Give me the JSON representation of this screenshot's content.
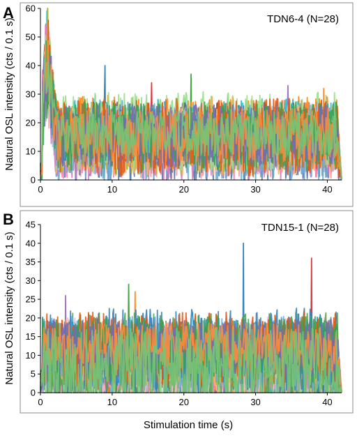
{
  "figure": {
    "ylabel": "Natural OSL intensity (cts / 0.1 s)",
    "xlabel": "Stimulation time (s)"
  },
  "palette": [
    "#1f77b4",
    "#d62728",
    "#2ca02c",
    "#9467bd",
    "#ff7f0e",
    "#17becf",
    "#8c564b",
    "#aec7e8",
    "#ffbb78",
    "#98df8a",
    "#ff9896",
    "#c5b0d5",
    "#f7b6d2",
    "#4e79a7",
    "#e377c2",
    "#bcbd22",
    "#f28e2b",
    "#59a14f",
    "#6baed6",
    "#fdae6b",
    "#a1d99b",
    "#9e9ac8",
    "#3182bd",
    "#e6550d",
    "#31a354",
    "#756bb1",
    "#fd8d3c",
    "#74c476"
  ],
  "chart_data": [
    {
      "panel": "A",
      "type": "line",
      "sample": "TDN6-4 (N=28)",
      "n_series": 28,
      "xlabel": "",
      "ylabel": "Natural OSL intensity (cts / 0.1 s)",
      "xlim": [
        0,
        42
      ],
      "ylim": [
        0,
        60
      ],
      "xticks": [
        0,
        10,
        20,
        30,
        40
      ],
      "yticks": [
        0,
        10,
        20,
        30,
        40,
        50,
        60
      ],
      "grid": false,
      "summary": {
        "x_start": 0,
        "x_end": 42,
        "sampling_interval_s": 0.1,
        "initial_peak_time_s": 1.0,
        "initial_peak_intensity": 52,
        "plateau_typical_range": [
          5,
          30
        ],
        "plateau_mean_approx": 15,
        "notable_spikes": [
          {
            "x": 9.0,
            "y": 40
          },
          {
            "x": 15.5,
            "y": 34
          },
          {
            "x": 21.0,
            "y": 37
          },
          {
            "x": 34.5,
            "y": 33
          },
          {
            "x": 39.5,
            "y": 32
          }
        ]
      }
    },
    {
      "panel": "B",
      "type": "line",
      "sample": "TDN15-1 (N=28)",
      "n_series": 28,
      "xlabel": "Stimulation time (s)",
      "ylabel": "Natural OSL intensity (cts / 0.1 s)",
      "xlim": [
        0,
        42
      ],
      "ylim": [
        0,
        45
      ],
      "xticks": [
        0,
        10,
        20,
        30,
        40
      ],
      "yticks": [
        0,
        5,
        10,
        15,
        20,
        25,
        30,
        35,
        40,
        45
      ],
      "grid": false,
      "summary": {
        "x_start": 0,
        "x_end": 42,
        "sampling_interval_s": 0.1,
        "plateau_typical_range": [
          0,
          22
        ],
        "plateau_mean_approx": 9,
        "notable_spikes": [
          {
            "x": 28.3,
            "y": 40
          },
          {
            "x": 37.8,
            "y": 36
          },
          {
            "x": 12.3,
            "y": 29
          },
          {
            "x": 3.5,
            "y": 26
          },
          {
            "x": 13.2,
            "y": 27
          }
        ]
      }
    }
  ]
}
